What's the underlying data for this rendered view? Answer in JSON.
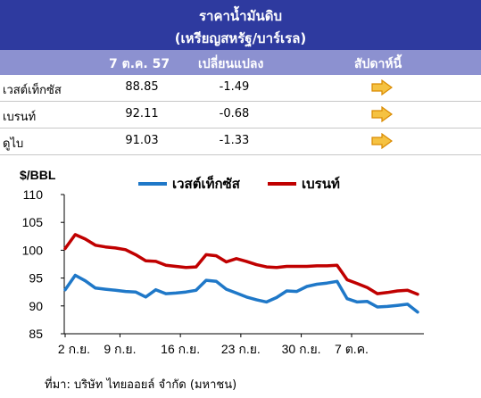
{
  "header": {
    "title": "ราคาน้ำมันดิบ",
    "subtitle": "(เหรียญสหรัฐ/บาร์เรล)"
  },
  "table": {
    "columns": [
      "7 ต.ค. 57",
      "เปลี่ยนแปลง",
      "สัปดาห์นี้"
    ],
    "rows": [
      {
        "name": "เวสต์เท็กซัส",
        "price": "88.85",
        "change": "-1.49",
        "trend": "right-arrow-icon"
      },
      {
        "name": "เบรนท์",
        "price": "92.11",
        "change": "-0.68",
        "trend": "right-arrow-icon"
      },
      {
        "name": "ดูไบ",
        "price": "91.03",
        "change": "-1.33",
        "trend": "right-arrow-icon"
      }
    ]
  },
  "chart_data": {
    "type": "line",
    "ylabel": "$/BBL",
    "ylim": [
      85,
      110
    ],
    "yticks": [
      85,
      90,
      95,
      100,
      105,
      110
    ],
    "xticks": [
      "2 ก.ย.",
      "9 ก.ย.",
      "16 ก.ย.",
      "23 ก.ย.",
      "30 ก.ย.",
      "7 ต.ค."
    ],
    "legend_position": "top",
    "series": [
      {
        "name": "เวสต์เท็กซัส",
        "color": "#1f78c8",
        "values": [
          92.9,
          95.5,
          94.5,
          93.2,
          93.0,
          92.8,
          92.6,
          92.5,
          91.6,
          92.9,
          92.2,
          92.3,
          92.5,
          92.8,
          94.6,
          94.4,
          93.0,
          92.3,
          91.6,
          91.1,
          90.7,
          91.5,
          92.7,
          92.6,
          93.5,
          93.9,
          94.1,
          94.4,
          91.3,
          90.7,
          90.8,
          89.8,
          89.9,
          90.1,
          90.3,
          88.9
        ]
      },
      {
        "name": "เบรนท์",
        "color": "#c00000",
        "values": [
          100.3,
          102.8,
          102.0,
          100.9,
          100.6,
          100.4,
          100.1,
          99.2,
          98.1,
          98.0,
          97.3,
          97.1,
          96.9,
          97.0,
          99.2,
          99.0,
          97.9,
          98.5,
          98.0,
          97.4,
          97.0,
          96.9,
          97.1,
          97.1,
          97.1,
          97.2,
          97.2,
          97.3,
          94.7,
          94.0,
          93.3,
          92.2,
          92.4,
          92.7,
          92.8,
          92.1
        ]
      }
    ]
  },
  "source": "ที่มา: บริษัท ไทยออยล์ จำกัด (มหาชน)"
}
